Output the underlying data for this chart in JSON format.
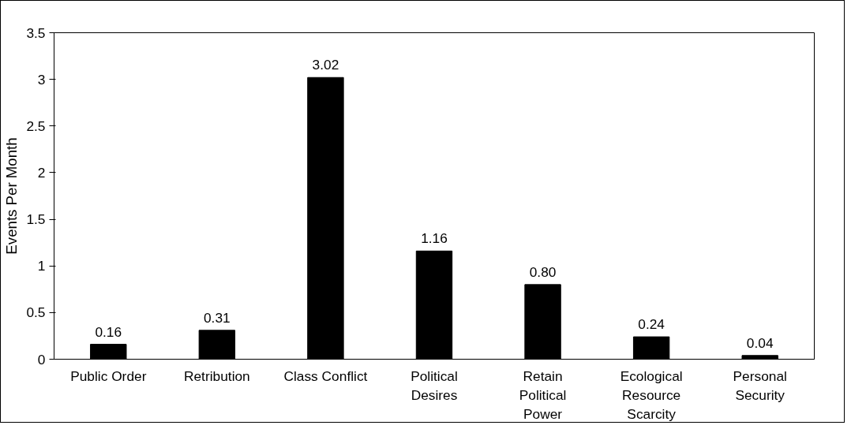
{
  "chart_data": {
    "type": "bar",
    "ylabel": "Events Per Month",
    "categories": [
      "Public Order",
      "Retribution",
      "Class Conflict",
      "Political Desires",
      "Retain Political Power",
      "Ecological Resource Scarcity",
      "Personal Security"
    ],
    "values": [
      0.16,
      0.31,
      3.02,
      1.16,
      0.8,
      0.24,
      0.04
    ],
    "value_labels": [
      "0.16",
      "0.31",
      "3.02",
      "1.16",
      "0.80",
      "0.24",
      "0.04"
    ],
    "color": "#000000",
    "ylim": [
      0,
      3.5
    ],
    "yticks": [
      0,
      0.5,
      1,
      1.5,
      2,
      2.5,
      3,
      3.5
    ],
    "grid": false
  }
}
